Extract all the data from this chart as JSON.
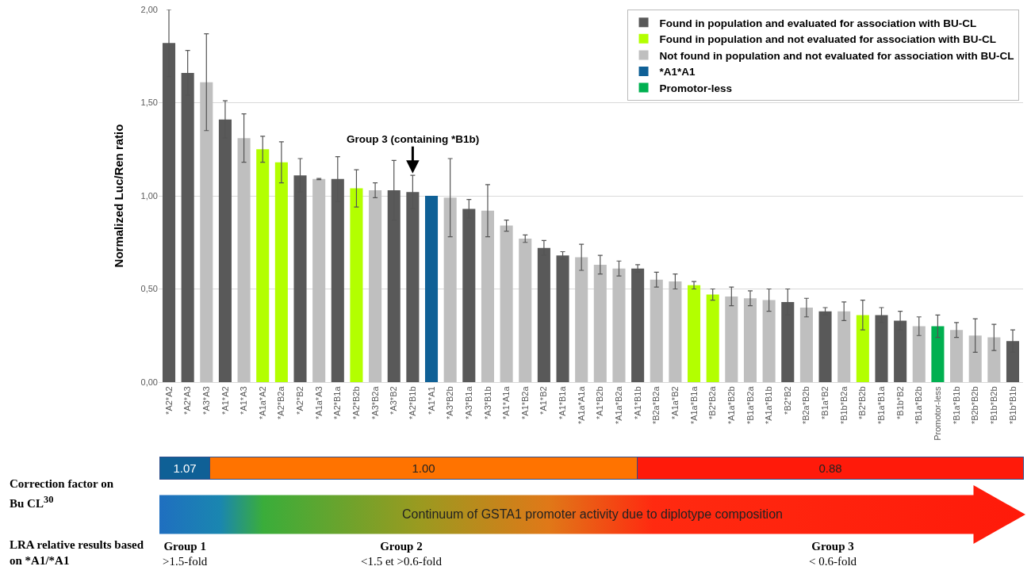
{
  "chart_data": {
    "type": "bar",
    "ylabel": "Normalized Luc/Ren ratio",
    "categories": [
      "*A2*A2",
      "*A2*A3",
      "*A3*A3",
      "*A1*A2",
      "*A1*A3",
      "*A1a*A2",
      "*A2*B2a",
      "*A2*B2",
      "*A1a*A3",
      "*A2*B1a",
      "*A2*B2b",
      "*A3*B2a",
      "*A3*B2",
      "*A2*B1b",
      "*A1*A1",
      "*A3*B2b",
      "*A3*B1a",
      "*A3*B1b",
      "*A1*A1a",
      "*A1*B2a",
      "*A1*B2",
      "*A1*B1a",
      "*A1a*A1a",
      "*A1*B2b",
      "*A1a*B2a",
      "*A1*B1b",
      "*B2a*B2a",
      "*A1a*B2",
      "*A1a*B1a",
      "*B2*B2a",
      "*A1a*B2b",
      "*B1a*B2a",
      "*A1a*B1b",
      "*B2*B2",
      "*B2a*B2b",
      "*B1a*B2",
      "*B1b*B2a",
      "*B2*B2b",
      "*B1a*B1a",
      "*B1b*B2",
      "*B1a*B2b",
      "Promotor-less",
      "*B1a*B1b",
      "*B2b*B2b",
      "*B1b*B2b",
      "*B1b*B1b"
    ],
    "series": [
      {
        "name": "Found in population and evaluated for association with BU-CL",
        "color": "#595959",
        "values": [
          1.82,
          1.66,
          null,
          1.41,
          null,
          null,
          null,
          1.11,
          null,
          1.09,
          null,
          null,
          1.03,
          1.02,
          null,
          null,
          0.93,
          null,
          null,
          null,
          0.72,
          0.68,
          null,
          null,
          null,
          0.61,
          null,
          null,
          null,
          null,
          null,
          null,
          null,
          0.43,
          null,
          0.38,
          null,
          null,
          0.36,
          0.33,
          null,
          null,
          null,
          null,
          null,
          0.22
        ],
        "errors": [
          0.18,
          0.12,
          null,
          0.1,
          null,
          null,
          null,
          0.09,
          null,
          0.12,
          null,
          null,
          0.16,
          0.09,
          null,
          null,
          0.05,
          null,
          null,
          null,
          0.04,
          0.02,
          null,
          null,
          null,
          0.02,
          null,
          null,
          null,
          null,
          null,
          null,
          null,
          0.07,
          null,
          0.02,
          null,
          null,
          0.04,
          0.05,
          null,
          null,
          null,
          null,
          null,
          0.06
        ]
      },
      {
        "name": "Found in population and not evaluated for association with BU-CL",
        "color": "#b3ff00",
        "values": [
          null,
          null,
          null,
          null,
          null,
          1.25,
          1.18,
          null,
          null,
          null,
          1.04,
          null,
          null,
          null,
          null,
          null,
          null,
          null,
          null,
          null,
          null,
          null,
          null,
          null,
          null,
          null,
          null,
          null,
          0.52,
          0.47,
          null,
          null,
          null,
          null,
          null,
          null,
          null,
          0.36,
          null,
          null,
          null,
          null,
          null,
          null,
          null,
          null
        ],
        "errors": [
          null,
          null,
          null,
          null,
          null,
          0.07,
          0.11,
          null,
          null,
          null,
          0.1,
          null,
          null,
          null,
          null,
          null,
          null,
          null,
          null,
          null,
          null,
          null,
          null,
          null,
          null,
          null,
          null,
          null,
          0.02,
          0.03,
          null,
          null,
          null,
          null,
          null,
          null,
          null,
          0.08,
          null,
          null,
          null,
          null,
          null,
          null,
          null,
          null
        ]
      },
      {
        "name": "Not found in population and not evaluated for association with BU-CL",
        "color": "#bfbfbf",
        "values": [
          null,
          null,
          1.61,
          null,
          1.31,
          null,
          null,
          null,
          1.09,
          null,
          null,
          1.03,
          null,
          null,
          null,
          0.99,
          null,
          0.92,
          0.84,
          0.77,
          null,
          null,
          0.67,
          0.63,
          0.61,
          null,
          0.55,
          0.54,
          null,
          null,
          0.46,
          0.45,
          0.44,
          null,
          0.4,
          null,
          0.38,
          null,
          null,
          null,
          0.3,
          null,
          0.28,
          0.25,
          0.24,
          null
        ],
        "errors": [
          null,
          null,
          0.26,
          null,
          0.13,
          null,
          null,
          null,
          0.003,
          null,
          null,
          0.04,
          null,
          null,
          null,
          0.21,
          null,
          0.14,
          0.03,
          0.02,
          null,
          null,
          0.07,
          0.05,
          0.04,
          null,
          0.04,
          0.04,
          null,
          null,
          0.05,
          0.04,
          0.06,
          null,
          0.05,
          null,
          0.05,
          null,
          null,
          null,
          0.05,
          null,
          0.04,
          0.09,
          0.07,
          null
        ]
      },
      {
        "name": "*A1*A1",
        "color": "#0f6096",
        "values": [
          null,
          null,
          null,
          null,
          null,
          null,
          null,
          null,
          null,
          null,
          null,
          null,
          null,
          null,
          1.0,
          null,
          null,
          null,
          null,
          null,
          null,
          null,
          null,
          null,
          null,
          null,
          null,
          null,
          null,
          null,
          null,
          null,
          null,
          null,
          null,
          null,
          null,
          null,
          null,
          null,
          null,
          null,
          null,
          null,
          null,
          null
        ]
      },
      {
        "name": "Promotor-less",
        "color": "#00b050",
        "values": [
          null,
          null,
          null,
          null,
          null,
          null,
          null,
          null,
          null,
          null,
          null,
          null,
          null,
          null,
          null,
          null,
          null,
          null,
          null,
          null,
          null,
          null,
          null,
          null,
          null,
          null,
          null,
          null,
          null,
          null,
          null,
          null,
          null,
          null,
          null,
          null,
          null,
          null,
          null,
          null,
          null,
          0.3,
          null,
          null,
          null,
          null
        ],
        "errors": [
          null,
          null,
          null,
          null,
          null,
          null,
          null,
          null,
          null,
          null,
          null,
          null,
          null,
          null,
          null,
          null,
          null,
          null,
          null,
          null,
          null,
          null,
          null,
          null,
          null,
          null,
          null,
          null,
          null,
          null,
          null,
          null,
          null,
          null,
          null,
          null,
          null,
          null,
          null,
          null,
          null,
          0.06,
          null,
          null,
          null,
          null
        ]
      }
    ],
    "ylim": [
      0,
      2.0
    ],
    "yticks": [
      {
        "value": 0,
        "label": "0,00"
      },
      {
        "value": 0.5,
        "label": "0,50"
      },
      {
        "value": 1.0,
        "label": "1,00"
      },
      {
        "value": 1.5,
        "label": "1,50"
      },
      {
        "value": 2.0,
        "label": "2,00"
      }
    ],
    "grid": "y",
    "legend": "top right",
    "annotations": [
      {
        "text": "Group 3 (containing *B1b)",
        "x": "*A2*B1b",
        "y": 1.12
      },
      "1.07",
      "1.00",
      "0.88",
      "Correction factor on Bu CL$^{30}$",
      "Continuum of GSTA1 promoter activity due to diplotype composition",
      "LRA relative results based on *A1/*A1",
      "Group 1",
      ">1.5-fold",
      "Group 2",
      "<1.5 et >0.6-fold",
      "Group 3",
      "< 0.6-fold"
    ]
  }
}
